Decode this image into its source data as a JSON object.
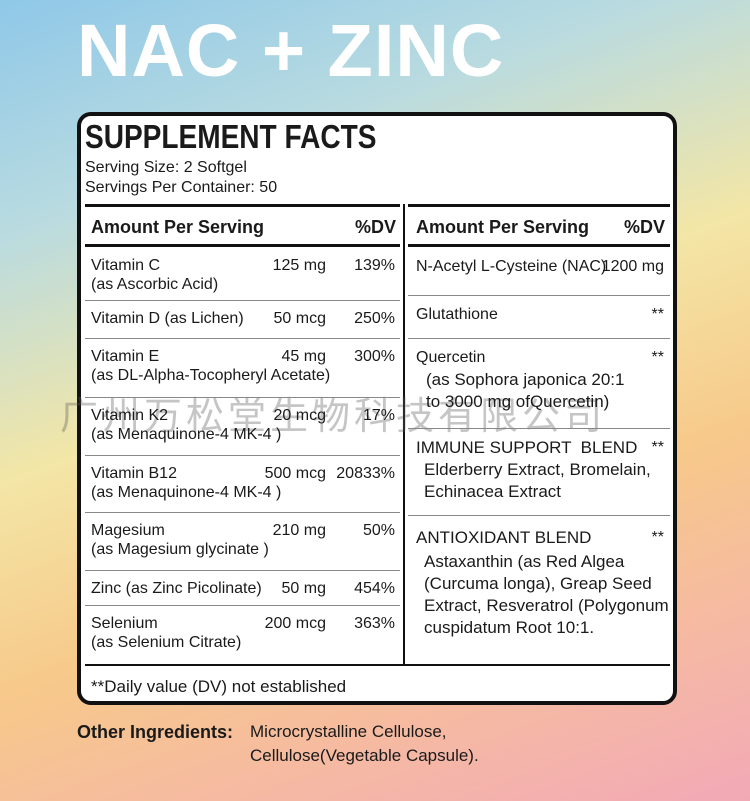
{
  "title": "NAC + ZINC",
  "facts": {
    "heading": "SUPPLEMENT FACTS",
    "serving_size": "Serving Size: 2 Softgel",
    "servings_per_container": "Servings Per Container: 50",
    "left": {
      "header": [
        "Amount Per Serving",
        "%DV"
      ],
      "rows": [
        {
          "name": "Vitamin C",
          "detail": "(as Ascorbic Acid)",
          "amount": "125 mg",
          "dv": "139%"
        },
        {
          "name": "Vitamin D (as Lichen)",
          "amount": "50 mcg",
          "dv": "250%"
        },
        {
          "name": "Vitamin E",
          "detail": "(as DL-Alpha-Tocopheryl Acetate)",
          "amount": "45 mg",
          "dv": "300%"
        },
        {
          "name": "Vitamin K2",
          "detail": "(as Menaquinone-4 MK-4 )",
          "amount": "20 mcg",
          "dv": "17%"
        },
        {
          "name": "Vitamin B12",
          "detail": "(as Menaquinone-4 MK-4 )",
          "amount": "500 mcg",
          "dv": "20833%"
        },
        {
          "name": "Magesium",
          "detail": "(as Magesium glycinate )",
          "amount": "210 mg",
          "dv": "50%"
        },
        {
          "name": "Zinc (as Zinc Picolinate)",
          "amount": "50 mg",
          "dv": "454%"
        },
        {
          "name": "Selenium",
          "detail": "(as Selenium Citrate)",
          "amount": "200 mcg",
          "dv": "363%"
        }
      ]
    },
    "right": {
      "header": [
        "Amount Per Serving",
        "%DV"
      ],
      "rows": [
        {
          "name": "N-Acetyl L-Cysteine (NAC)",
          "amount": "1200 mg"
        },
        {
          "name": "Glutathione",
          "amount": "**"
        },
        {
          "name": "Quercetin",
          "amount": "**",
          "details": [
            "(as Sophora japonica 20:1",
            "to 3000 mg ofQuercetin)"
          ]
        },
        {
          "name": "IMMUNE SUPPORT  BLEND",
          "amount": "**",
          "details": [
            "Elderberry Extract, Bromelain,",
            "Echinacea Extract"
          ]
        },
        {
          "name": "ANTIOXIDANT BLEND",
          "amount": "**",
          "details": [
            "Astaxanthin (as Red Algea",
            "(Curcuma longa), Greap Seed",
            "Extract, Resveratrol (Polygonum",
            "cuspidatum Root 10:1."
          ]
        }
      ]
    },
    "footnote": "**Daily value (DV) not established"
  },
  "other_ingredients": {
    "label": "Other Ingredients:",
    "lines": [
      "Microcrystalline Cellulose,",
      "Cellulose(Vegetable Capsule)."
    ]
  },
  "watermark": "广州万松堂生物科技有限公司"
}
